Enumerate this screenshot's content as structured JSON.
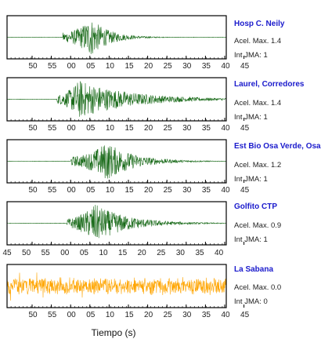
{
  "chart_data": [
    {
      "type": "line",
      "station": "Hosp C. Neily",
      "accel_label": "Acel. Max. 1.4",
      "intensity_label": "Int JMA: 1",
      "color": "#1a6b1a",
      "x_ticks": [
        "50",
        "55",
        "00",
        "05",
        "10",
        "15",
        "20",
        "25",
        "30",
        "35",
        "40",
        "45"
      ],
      "envelope": {
        "onset": 14.0,
        "peak_time": 21.0,
        "peak_amp": 0.95,
        "decay_to": 31.0,
        "noise": 0.01
      }
    },
    {
      "type": "line",
      "station": "Laurel, Corredores",
      "accel_label": "Acel. Max. 1.4",
      "intensity_label": "Int JMA: 1",
      "color": "#1a6b1a",
      "x_ticks": [
        "50",
        "55",
        "00",
        "05",
        "10",
        "15",
        "20",
        "25",
        "30",
        "35",
        "40",
        "45"
      ],
      "envelope": {
        "onset": 12.5,
        "peak_time": 18.0,
        "peak_amp": 0.95,
        "decay_to": 46.0,
        "noise": 0.01
      }
    },
    {
      "type": "line",
      "station": "Est Bio Osa Verde, Osa",
      "accel_label": "Acel. Max. 1.2",
      "intensity_label": "Int JMA: 1",
      "color": "#1a6b1a",
      "x_ticks": [
        "50",
        "55",
        "00",
        "05",
        "10",
        "15",
        "20",
        "25",
        "30",
        "35",
        "40",
        "45"
      ],
      "envelope": {
        "onset": 16.0,
        "peak_time": 25.0,
        "peak_amp": 0.95,
        "decay_to": 40.0,
        "noise": 0.01
      }
    },
    {
      "type": "line",
      "station": "Golfito CTP",
      "accel_label": "Acel. Max. 0.9",
      "intensity_label": "Int JMA: 1",
      "color": "#1a6b1a",
      "x_ticks": [
        "45",
        "50",
        "55",
        "00",
        "05",
        "10",
        "15",
        "20",
        "25",
        "30",
        "35",
        "40"
      ],
      "envelope": {
        "onset": 15.0,
        "peak_time": 22.0,
        "peak_amp": 0.95,
        "decay_to": 40.0,
        "noise": 0.01
      }
    },
    {
      "type": "line",
      "station": "La Sabana",
      "accel_label": "Acel. Max. 0.0",
      "intensity_label": "Int JMA: 0",
      "color": "#ffa500",
      "x_ticks": [
        "50",
        "55",
        "00",
        "05",
        "10",
        "15",
        "20",
        "25",
        "30",
        "35",
        "40",
        "45"
      ],
      "xlabel": "Tiempo (s)",
      "envelope": {
        "onset": 0.0,
        "peak_time": 0.0,
        "peak_amp": 0.0,
        "decay_to": 0.0,
        "noise": 0.45
      }
    }
  ]
}
